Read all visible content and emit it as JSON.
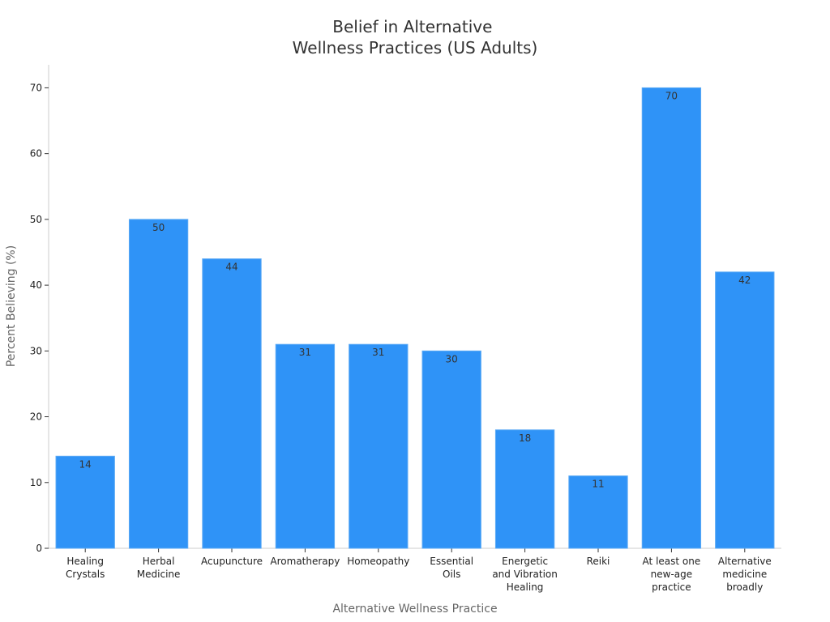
{
  "chart_data": {
    "type": "bar",
    "title": [
      "Belief in Alternative",
      "Wellness Practices (US Adults)"
    ],
    "xlabel": "Alternative Wellness Practice",
    "ylabel": "Percent Believing (%)",
    "categories": [
      [
        "Healing",
        "Crystals"
      ],
      [
        "Herbal",
        "Medicine"
      ],
      [
        "Acupuncture"
      ],
      [
        "Aromatherapy"
      ],
      [
        "Homeopathy"
      ],
      [
        "Essential",
        "Oils"
      ],
      [
        "Energetic",
        "and Vibration",
        "Healing"
      ],
      [
        "Reiki"
      ],
      [
        "At least one",
        "new-age",
        "practice"
      ],
      [
        "Alternative",
        "medicine",
        "broadly"
      ]
    ],
    "values": [
      14,
      50,
      44,
      31,
      31,
      30,
      18,
      11,
      70,
      42
    ],
    "ylim": [
      0,
      73.5
    ],
    "yticks": [
      0,
      10,
      20,
      30,
      40,
      50,
      60,
      70
    ],
    "bar_color": "#2f93f7",
    "bar_edge_color": "#5aa9f5",
    "grid": false,
    "legend": "none"
  }
}
